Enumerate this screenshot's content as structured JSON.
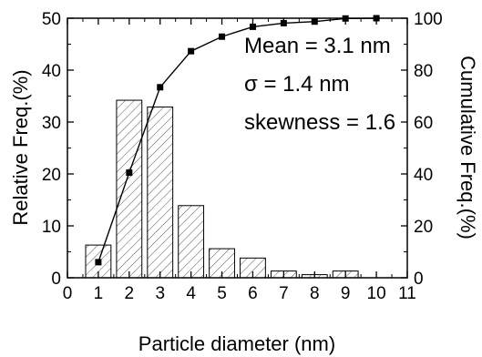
{
  "chart_data": {
    "type": "bar",
    "xlabel": "Particle diameter (nm)",
    "ylabel_left": "Relative Freq.(%)",
    "ylabel_right": "Cumulative Freq.(%)",
    "xlim": [
      0,
      11
    ],
    "ylim_left": [
      0,
      50
    ],
    "ylim_right": [
      0,
      100
    ],
    "x_ticks": [
      "0",
      "1",
      "2",
      "3",
      "4",
      "5",
      "6",
      "7",
      "8",
      "9",
      "10",
      "11"
    ],
    "y_left_ticks": [
      "0",
      "10",
      "20",
      "30",
      "40",
      "50"
    ],
    "y_right_ticks": [
      "0",
      "20",
      "40",
      "60",
      "80",
      "100"
    ],
    "grid": false,
    "series": [
      {
        "type": "bar",
        "axis": "left",
        "x": [
          1,
          2,
          3,
          4,
          5,
          6,
          7,
          8,
          9
        ],
        "values": [
          6.3,
          34.2,
          32.9,
          13.9,
          5.6,
          3.8,
          1.3,
          0.6,
          1.3
        ],
        "fill": "diagonal-hatch"
      },
      {
        "type": "line",
        "axis": "right",
        "marker": "square",
        "x": [
          1,
          2,
          3,
          4,
          5,
          6,
          7,
          8,
          9,
          10
        ],
        "values": [
          6,
          40.5,
          73.4,
          87.3,
          92.9,
          96.7,
          98.1,
          98.7,
          99.9,
          100
        ]
      }
    ],
    "annotations": [
      "Mean = 3.1 nm",
      "σ = 1.4 nm",
      "skewness = 1.6"
    ]
  }
}
